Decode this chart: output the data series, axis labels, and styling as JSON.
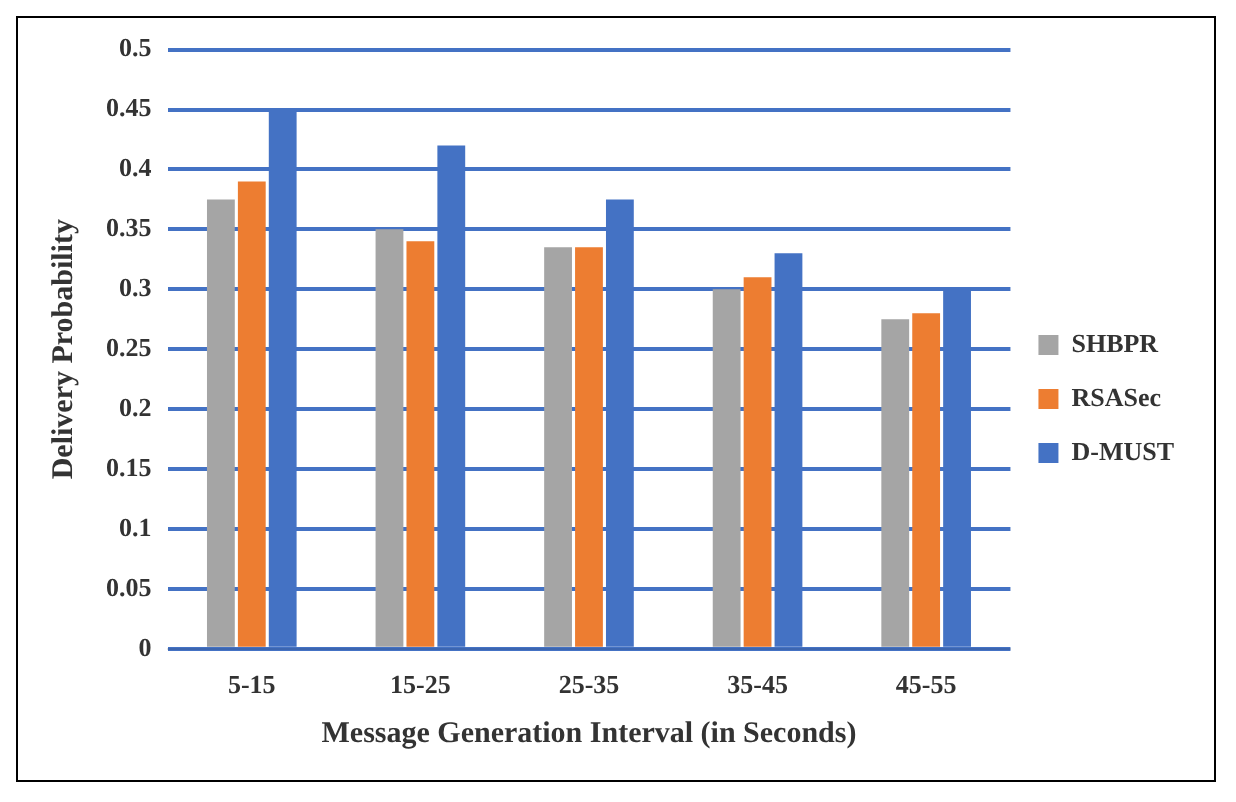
{
  "chart_data": {
    "type": "bar",
    "xlabel": "Message Generation Interval (in Seconds)",
    "ylabel": "Delivery Probability",
    "categories": [
      "5-15",
      "15-25",
      "25-35",
      "35-45",
      "45-55"
    ],
    "series": [
      {
        "name": "SHBPR",
        "color": "#a5a5a5",
        "values": [
          0.375,
          0.35,
          0.335,
          0.3,
          0.275
        ]
      },
      {
        "name": "RSASec",
        "color": "#ed7d31",
        "values": [
          0.39,
          0.34,
          0.335,
          0.31,
          0.28
        ]
      },
      {
        "name": "D-MUST",
        "color": "#4472c4",
        "values": [
          0.45,
          0.42,
          0.375,
          0.33,
          0.3
        ]
      }
    ],
    "ylim": [
      0,
      0.5
    ],
    "yticks": [
      0,
      0.05,
      0.1,
      0.15,
      0.2,
      0.25,
      0.3,
      0.35,
      0.4,
      0.45,
      0.5
    ],
    "grid": "y",
    "legend": "right"
  }
}
